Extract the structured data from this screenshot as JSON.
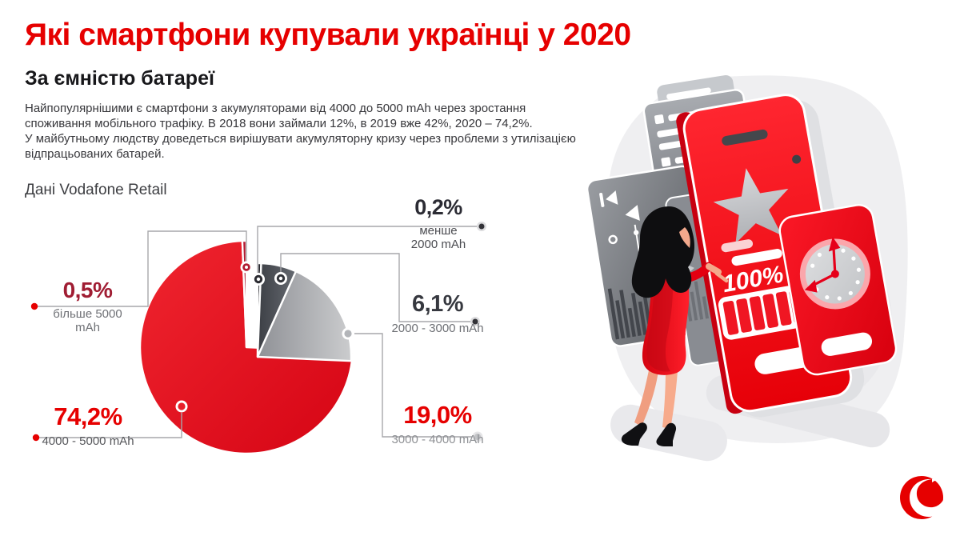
{
  "header": {
    "title": "Які смартфони купували українці у 2020",
    "subtitle": "За ємністю батареї",
    "description": "Найпопулярнішими є смартфони з акумуляторами від 4000 до 5000 mAh через зростання\nспоживання мобільного трафіку. В 2018 вони займали 12%, в 2019 вже 42%, 2020 – 74,2%.\nУ майбутньому людству доведеться вирішувати акумуляторну кризу через проблеми з утилізацією\nвідпрацьованих батарей.",
    "source_label": "Дані Vodafone Retail"
  },
  "chart_data": {
    "type": "pie",
    "title": "Які смартфони купували українці у 2020 — за ємністю батареї",
    "unit": "%",
    "clockwise": true,
    "start_angle_deg": 0,
    "legend_position": "callouts",
    "segments": [
      {
        "label": "менше 2000 mAh",
        "value": 0.2,
        "display": "0,2%",
        "color": "#26262c"
      },
      {
        "label": "2000 - 3000 mAh",
        "value": 6.1,
        "display": "6,1%",
        "color": "#4a4d53"
      },
      {
        "label": "3000 - 4000 mAh",
        "value": 19.0,
        "display": "19,0%",
        "color": "#b0b2b6"
      },
      {
        "label": "4000 - 5000 mAh",
        "value": 74.2,
        "display": "74,2%",
        "color": "#e8202b"
      },
      {
        "label": "більше 5000 mAh",
        "value": 0.5,
        "display": "0,5%",
        "color": "#b01a31"
      }
    ]
  },
  "callouts": [
    {
      "value": "0,2%",
      "label": "менше\n2000 mAh",
      "value_color": "#2b2b33",
      "label_color": "#4c4d52",
      "dot_color": "#323237"
    },
    {
      "value": "6,1%",
      "label": "2000 - 3000 mAh",
      "value_color": "#36383f",
      "label_color": "#6e7075",
      "dot_color": "#323237"
    },
    {
      "value": "19,0%",
      "label": "3000 - 4000 mAh",
      "value_color": "#e60000",
      "label_color": "#8f9195",
      "dot_color": "#c2c3c6"
    },
    {
      "value": "74,2%",
      "label": "4000 - 5000 mAh",
      "value_color": "#e60000",
      "label_color": "#56575b",
      "dot_color": "#e60000"
    },
    {
      "value": "0,5%",
      "label": "більше 5000 mAh",
      "value_color": "#a01d33",
      "label_color": "#6e7075",
      "dot_color": "#e60000"
    }
  ],
  "illustration": {
    "battery_level": "100%",
    "elements": [
      "smartphone",
      "battery-indicator",
      "star-rating",
      "clock",
      "media-player-panel",
      "list-panel",
      "woman-touching-phone"
    ],
    "colors": {
      "phone_red": "#f31220",
      "panel_gray": "#8e9196",
      "blob_gray": "#efeff1",
      "hair_black": "#0e0e10",
      "skin": "#f3a98b"
    }
  },
  "brand": {
    "name": "Vodafone",
    "logo": "vodafone-speechmark-logo",
    "color": "#e60000"
  }
}
